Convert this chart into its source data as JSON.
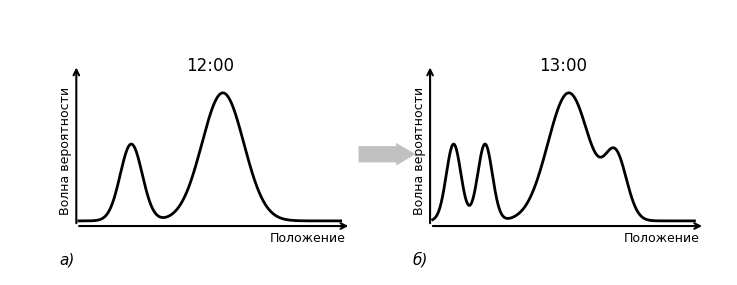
{
  "title_left": "12:00",
  "title_right": "13:00",
  "ylabel": "Волна вероятности",
  "xlabel": "Положение",
  "label_left": "а)",
  "label_right": "б)",
  "background_color": "#ffffff",
  "line_color": "#000000",
  "line_width": 2.0,
  "arrow_fill": "#cccccc",
  "arrow_edge": "#aaaaaa",
  "left_peaks": [
    {
      "mu": 2.0,
      "sigma": 0.42,
      "amp": 0.6
    },
    {
      "mu": 5.5,
      "sigma": 0.8,
      "amp": 1.0
    }
  ],
  "right_peaks": [
    {
      "mu": 0.8,
      "sigma": 0.28,
      "amp": 0.6
    },
    {
      "mu": 2.0,
      "sigma": 0.28,
      "amp": 0.6
    },
    {
      "mu": 5.2,
      "sigma": 0.8,
      "amp": 1.0
    },
    {
      "mu": 7.0,
      "sigma": 0.42,
      "amp": 0.48
    }
  ],
  "xlim": [
    -0.2,
    10.5
  ],
  "ylim": [
    -0.1,
    1.28
  ]
}
